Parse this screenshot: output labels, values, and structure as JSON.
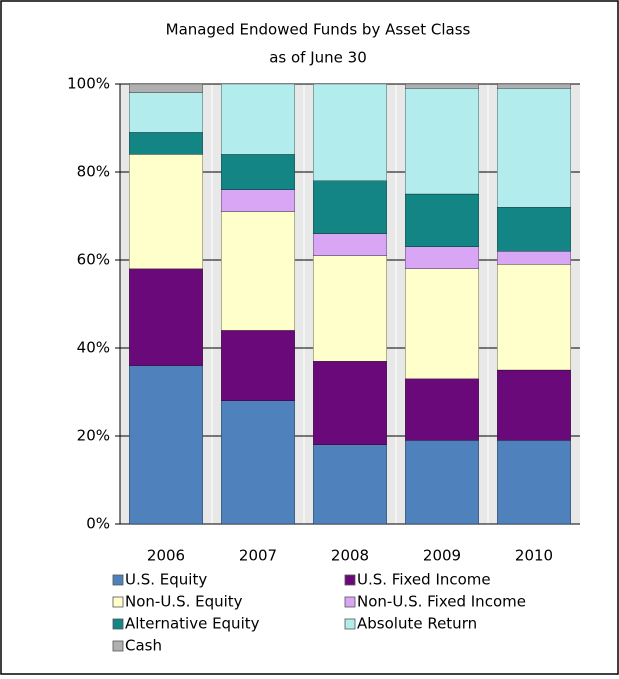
{
  "chart_data": {
    "type": "stacked_bar",
    "title": "Managed Endowed Funds by Asset Class",
    "subtitle": "as of June 30",
    "categories": [
      "2006",
      "2007",
      "2008",
      "2009",
      "2010"
    ],
    "series": [
      {
        "name": "U.S. Equity",
        "color": "#4f81bd",
        "values": [
          36,
          28,
          18,
          19,
          19
        ]
      },
      {
        "name": "U.S. Fixed Income",
        "color": "#6a0a7a",
        "values": [
          22,
          16,
          19,
          14,
          16
        ]
      },
      {
        "name": "Non-U.S. Equity",
        "color": "#ffffcc",
        "values": [
          26,
          27,
          24,
          25,
          24
        ]
      },
      {
        "name": "Non-U.S. Fixed Income",
        "color": "#d9a6f5",
        "values": [
          0,
          5,
          5,
          5,
          3
        ]
      },
      {
        "name": "Alternative Equity",
        "color": "#138585",
        "values": [
          5,
          8,
          12,
          12,
          10
        ]
      },
      {
        "name": "Absolute Return",
        "color": "#b3ecec",
        "values": [
          9,
          16,
          22,
          24,
          27
        ]
      },
      {
        "name": "Cash",
        "color": "#b0b0b0",
        "values": [
          2,
          0,
          0,
          1,
          1
        ]
      }
    ],
    "ylim": [
      0,
      100
    ],
    "yticks": [
      {
        "value": 0,
        "label": "0%"
      },
      {
        "value": 20,
        "label": "20%"
      },
      {
        "value": 40,
        "label": "40%"
      },
      {
        "value": 60,
        "label": "60%"
      },
      {
        "value": 80,
        "label": "80%"
      },
      {
        "value": 100,
        "label": "100%"
      }
    ],
    "grid": true,
    "legend": "bottom"
  }
}
